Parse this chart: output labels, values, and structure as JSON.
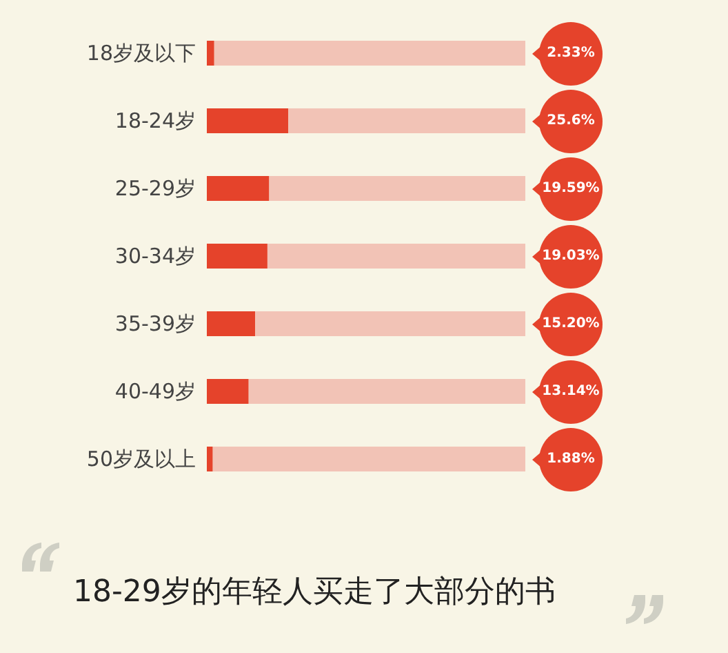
{
  "chart_data": {
    "type": "bar",
    "orientation": "horizontal",
    "stacked": true,
    "title": "18-29岁的年轻人买走了大部分的书",
    "categories": [
      "18岁及以下",
      "18-24岁",
      "25-29岁",
      "30-34岁",
      "35-39岁",
      "40-49岁",
      "50岁及以上"
    ],
    "series": [
      {
        "color": "#e5432b",
        "values": [
          2.33,
          25.6,
          19.59,
          19.03,
          15.2,
          13.14,
          1.88
        ],
        "value_labels": [
          "2.33%",
          "25.6%",
          "19.59%",
          "19.03%",
          "15.20%",
          "13.14%",
          "1.88%"
        ]
      },
      {
        "color": "#f2c3b6",
        "values": [
          97.67,
          74.4,
          80.41,
          80.97,
          84.8,
          86.86,
          98.12
        ]
      }
    ],
    "xlim": [
      0,
      100
    ],
    "tick_labels": "y"
  }
}
